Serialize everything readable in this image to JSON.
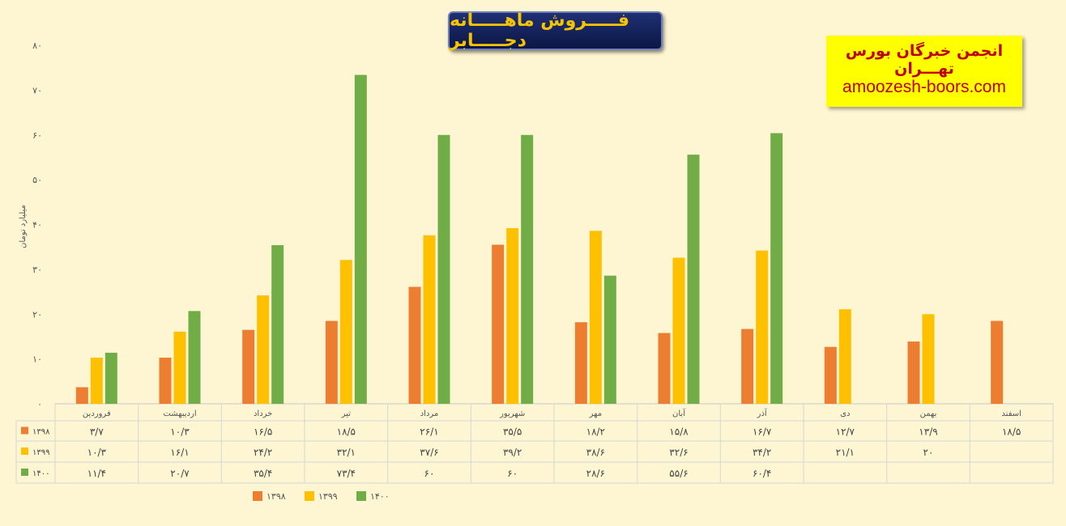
{
  "header": {
    "title": "فـــــروش ماهـــــانه دجـــــابر"
  },
  "brand": {
    "name": "انجمن خبرگان بورس تهـــران",
    "url": "amoozesh-boors.com"
  },
  "chart_data": {
    "type": "bar",
    "title": "فـــــروش ماهـــــانه دجـــــابر",
    "ylabel": "میلیارد تومان",
    "xlabel": "",
    "ylim": [
      0,
      80
    ],
    "yticks": [
      0,
      10,
      20,
      30,
      40,
      50,
      60,
      70,
      80
    ],
    "ytick_labels": [
      "۰",
      "۱۰",
      "۲۰",
      "۳۰",
      "۴۰",
      "۵۰",
      "۶۰",
      "۷۰",
      "۸۰"
    ],
    "categories": [
      "فروردین",
      "اردیبهشت",
      "خرداد",
      "تیر",
      "مرداد",
      "شهریور",
      "مهر",
      "آبان",
      "آذر",
      "دی",
      "بهمن",
      "اسفند"
    ],
    "series": [
      {
        "name": "۱۳۹۸",
        "color": "#ed7d31",
        "values": [
          3.7,
          10.3,
          16.5,
          18.5,
          26.1,
          35.5,
          18.2,
          15.8,
          16.7,
          12.7,
          13.9,
          18.5
        ],
        "labels": [
          "۳/۷",
          "۱۰/۳",
          "۱۶/۵",
          "۱۸/۵",
          "۲۶/۱",
          "۳۵/۵",
          "۱۸/۲",
          "۱۵/۸",
          "۱۶/۷",
          "۱۲/۷",
          "۱۳/۹",
          "۱۸/۵"
        ]
      },
      {
        "name": "۱۳۹۹",
        "color": "#ffc000",
        "values": [
          10.3,
          16.1,
          24.2,
          32.1,
          37.6,
          39.2,
          38.6,
          32.6,
          34.2,
          21.1,
          20,
          null
        ],
        "labels": [
          "۱۰/۳",
          "۱۶/۱",
          "۲۴/۲",
          "۳۲/۱",
          "۳۷/۶",
          "۳۹/۲",
          "۳۸/۶",
          "۳۲/۶",
          "۳۴/۲",
          "۲۱/۱",
          "۲۰",
          ""
        ]
      },
      {
        "name": "۱۴۰۰",
        "color": "#70ad47",
        "values": [
          11.4,
          20.7,
          35.4,
          73.4,
          60,
          60,
          28.6,
          55.6,
          60.4,
          null,
          null,
          null
        ],
        "labels": [
          "۱۱/۴",
          "۲۰/۷",
          "۳۵/۴",
          "۷۳/۴",
          "۶۰",
          "۶۰",
          "۲۸/۶",
          "۵۵/۶",
          "۶۰/۴",
          "",
          "",
          ""
        ]
      }
    ],
    "legend": "bottom",
    "data_table": true,
    "grid": false
  }
}
